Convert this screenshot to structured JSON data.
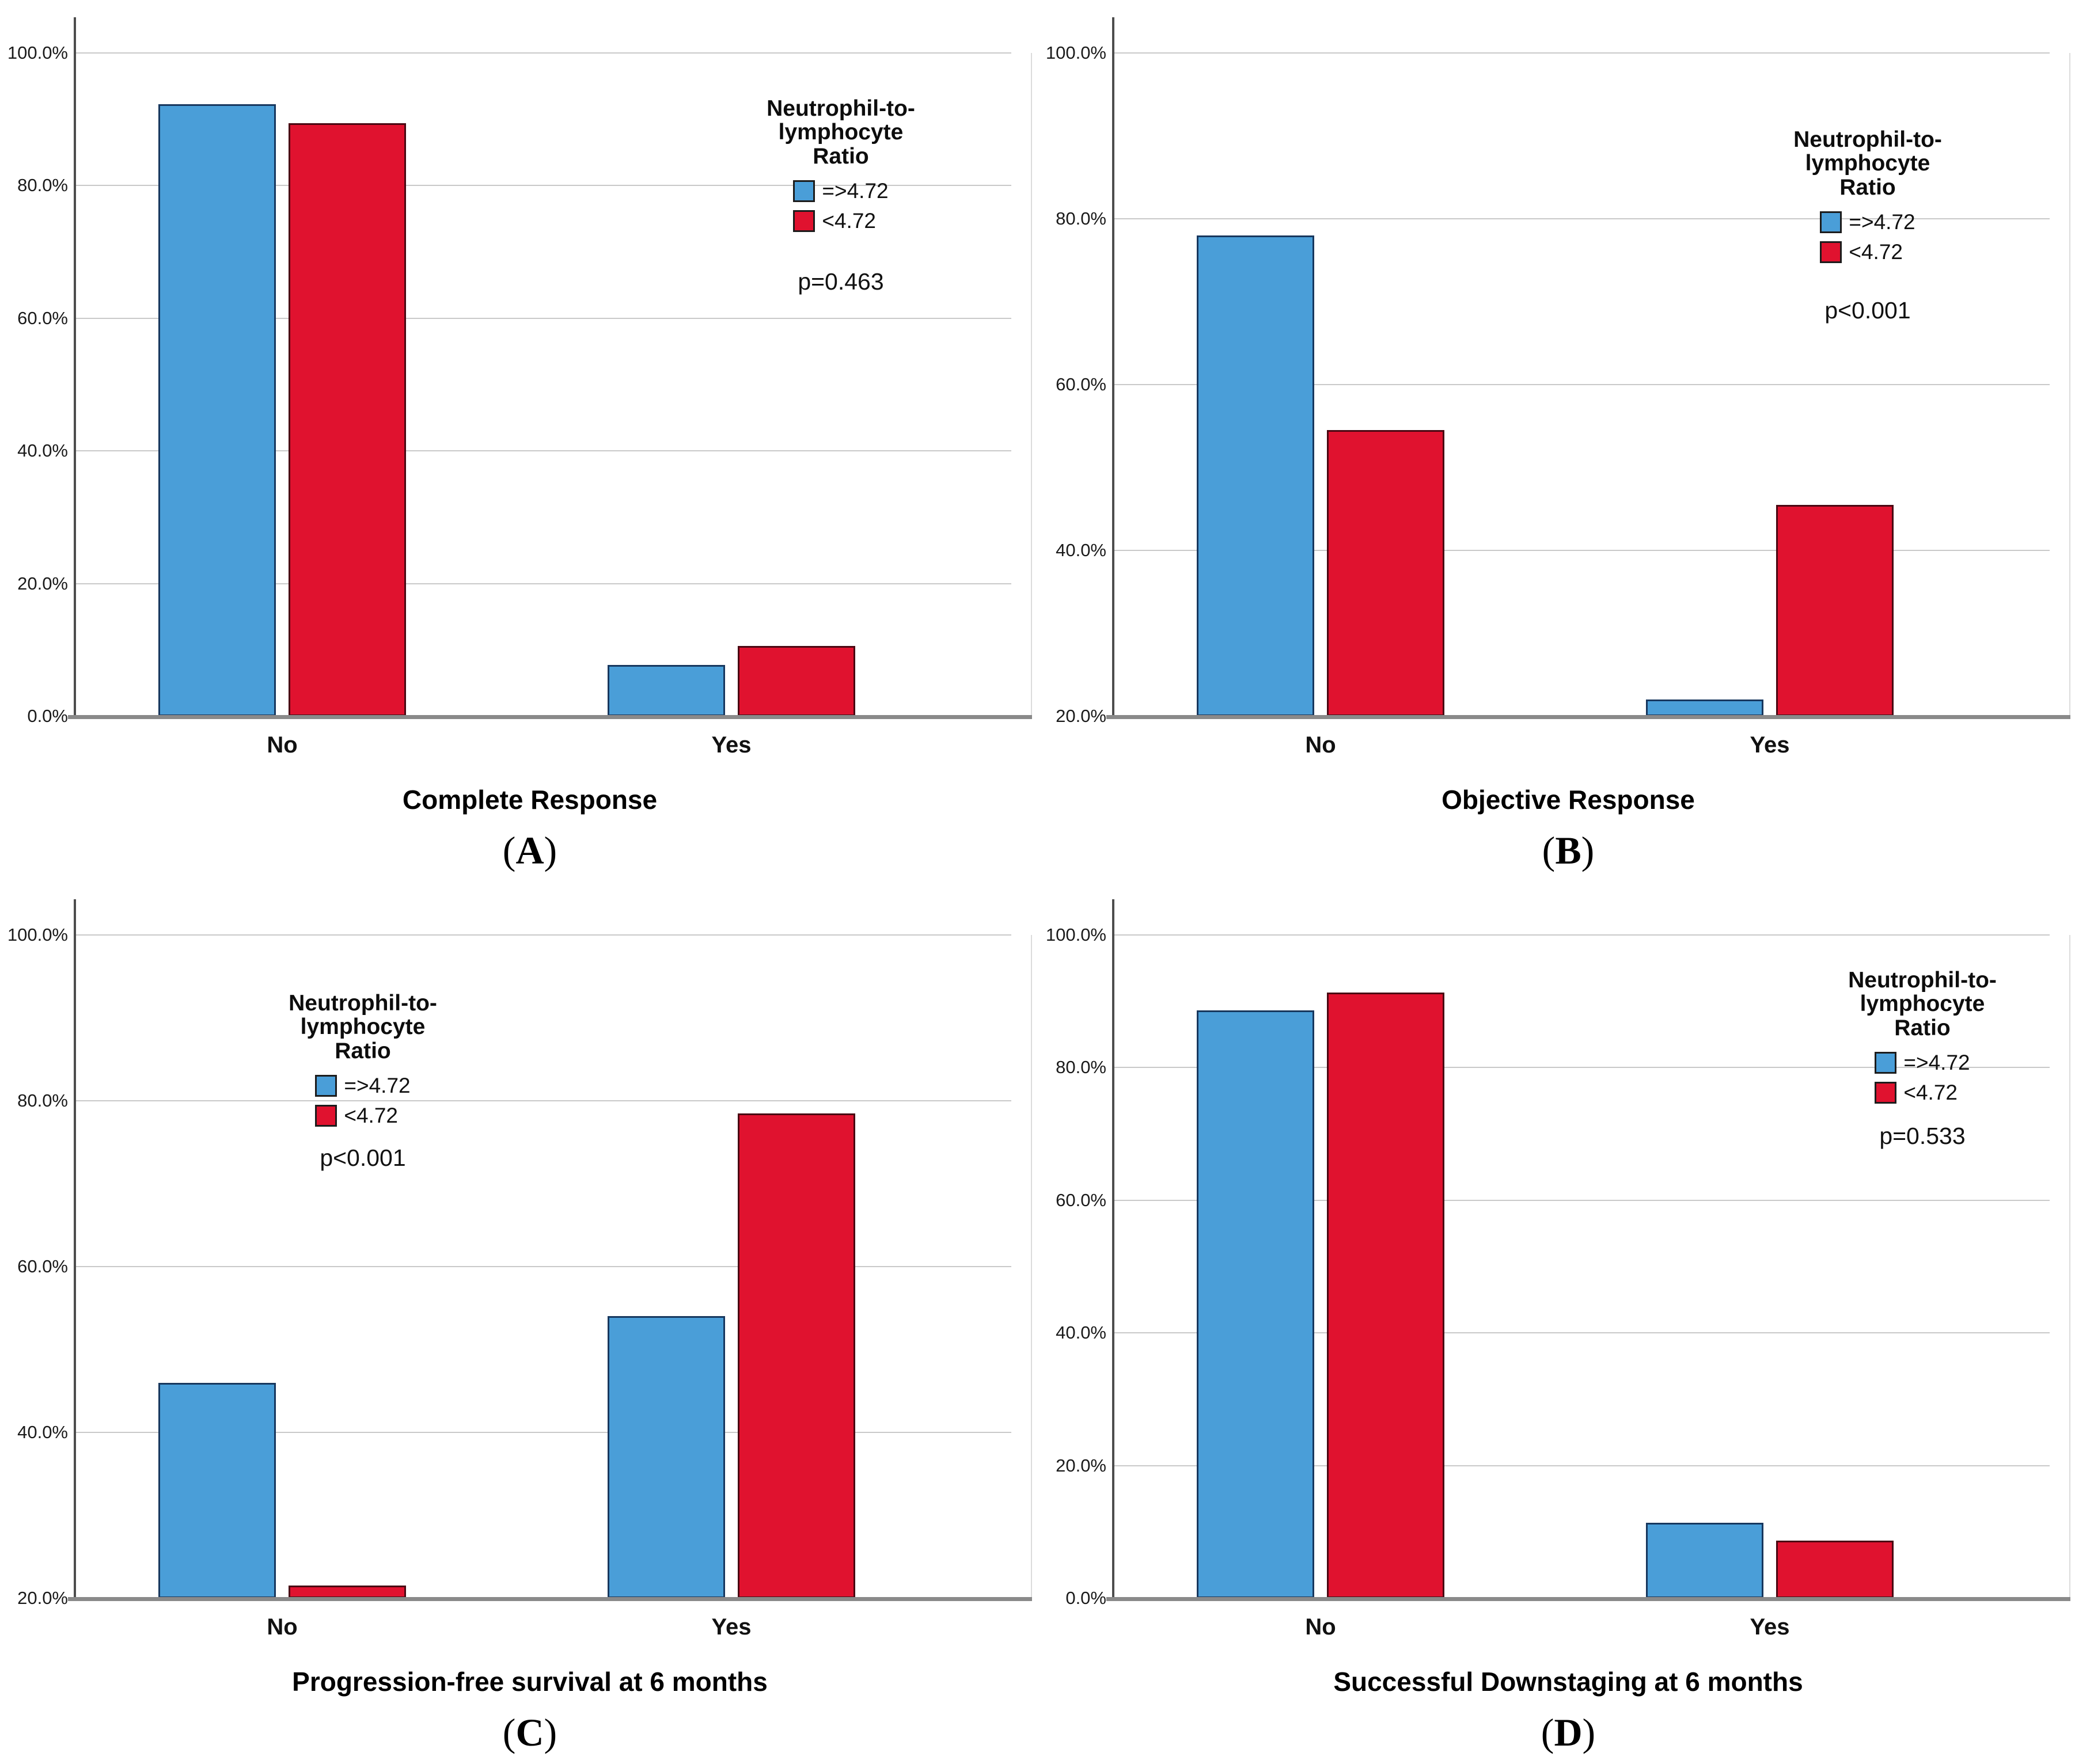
{
  "figure": {
    "background": "#ffffff",
    "legend_title_lines": [
      "Neutrophil-to-",
      "lymphocyte",
      "Ratio"
    ],
    "colors": {
      "blue": "#4A9ED8",
      "blue_border": "#17375E",
      "red": "#E0122F",
      "red_border": "#4A0712",
      "gridline": "#C9C9C9",
      "baseline": "#8A8A8A",
      "axis": "#4D4D4D"
    }
  },
  "chart_data": [
    {
      "type": "bar",
      "panel": "A",
      "caption_letter": "A",
      "xlabel": "Complete Response",
      "categories": [
        "No",
        "Yes"
      ],
      "series": [
        {
          "name": "=>4.72",
          "color": "blue",
          "values": [
            92.3,
            7.7
          ]
        },
        {
          "name": "<4.72",
          "color": "red",
          "values": [
            89.4,
            10.6
          ]
        }
      ],
      "p_label": "p=0.463",
      "ylim": [
        0,
        100
      ],
      "yticks": [
        "0.0%",
        "20.0%",
        "40.0%",
        "60.0%",
        "80.0%",
        "100.0%"
      ],
      "grid": true,
      "legend_position": "upper-right-inside"
    },
    {
      "type": "bar",
      "panel": "B",
      "caption_letter": "B",
      "xlabel": "Objective Response",
      "categories": [
        "No",
        "Yes"
      ],
      "series": [
        {
          "name": "=>4.72",
          "color": "blue",
          "values": [
            78.0,
            22.0
          ]
        },
        {
          "name": "<4.72",
          "color": "red",
          "values": [
            54.5,
            45.5
          ]
        }
      ],
      "p_label": "p<0.001",
      "ylim": [
        20,
        100
      ],
      "yticks": [
        "20.0%",
        "40.0%",
        "60.0%",
        "80.0%",
        "100.0%"
      ],
      "grid": true,
      "legend_position": "upper-right-inside"
    },
    {
      "type": "bar",
      "panel": "C",
      "caption_letter": "C",
      "xlabel": "Progression-free survival at 6 months",
      "categories": [
        "No",
        "Yes"
      ],
      "series": [
        {
          "name": "=>4.72",
          "color": "blue",
          "values": [
            46.0,
            54.0
          ]
        },
        {
          "name": "<4.72",
          "color": "red",
          "values": [
            21.5,
            78.5
          ]
        }
      ],
      "p_label": "p<0.001",
      "ylim": [
        20,
        100
      ],
      "yticks": [
        "20.0%",
        "40.0%",
        "60.0%",
        "80.0%",
        "100.0%"
      ],
      "grid": true,
      "legend_position": "upper-left-inside"
    },
    {
      "type": "bar",
      "panel": "D",
      "caption_letter": "D",
      "xlabel": "Successful Downstaging at 6 months",
      "categories": [
        "No",
        "Yes"
      ],
      "series": [
        {
          "name": "=>4.72",
          "color": "blue",
          "values": [
            88.6,
            11.4
          ]
        },
        {
          "name": "<4.72",
          "color": "red",
          "values": [
            91.3,
            8.7
          ]
        }
      ],
      "p_label": "p=0.533",
      "ylim": [
        0,
        100
      ],
      "yticks": [
        "0.0%",
        "20.0%",
        "40.0%",
        "60.0%",
        "80.0%",
        "100.0%"
      ],
      "grid": true,
      "legend_position": "upper-right-inside"
    }
  ]
}
